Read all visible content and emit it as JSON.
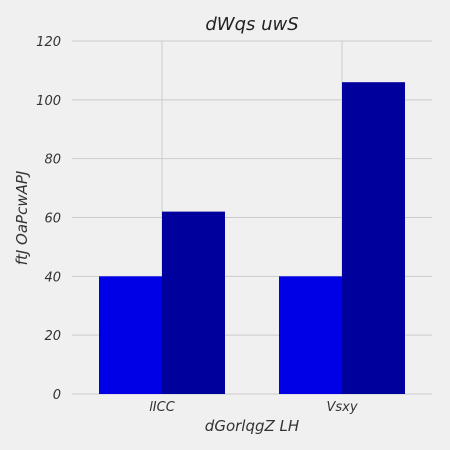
{
  "chart_data": {
    "type": "bar",
    "title": "dWqs uwS",
    "xlabel": "dGorlqgZ LH",
    "ylabel": "ftJ OaPcwAPJ",
    "categories": [
      "lICC",
      "Vsxy"
    ],
    "series": [
      {
        "values": [
          40,
          40
        ],
        "color": "#0000e6"
      },
      {
        "values": [
          62,
          106
        ],
        "color": "#00009c"
      }
    ],
    "ylim": [
      0,
      120
    ],
    "yticks": [
      0,
      20,
      40,
      60,
      80,
      100,
      120
    ],
    "grid": true,
    "legend": "none"
  }
}
